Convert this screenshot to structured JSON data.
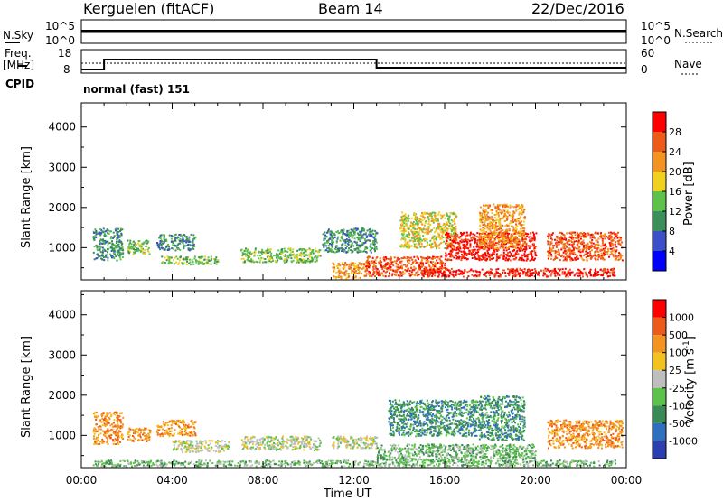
{
  "header": {
    "radar": "Kerguelen (fitACF)",
    "beam": "Beam 14",
    "date": "22/Dec/2016"
  },
  "top_panels": {
    "nsky_label": "N.Sky",
    "nsky_ticks": [
      "10^5",
      "10^0"
    ],
    "nsearch_label": "N.Search",
    "nsearch_ticks": [
      "10^5",
      "10^0"
    ],
    "freq_label": "Freq.",
    "freq_unit": "[MHz]",
    "freq_ticks": [
      "18",
      "8"
    ],
    "nave_label": "Nave",
    "nave_ticks": [
      "60",
      "0"
    ],
    "cpid_label": "CPID",
    "cpid_value": "normal (fast) 151"
  },
  "chart_data": [
    {
      "type": "heatmap",
      "name": "power",
      "ylabel": "Slant Range [km]",
      "yticks": [
        "4000",
        "3000",
        "2000",
        "1000"
      ],
      "ylim": [
        200,
        4600
      ],
      "colorbar_label": "Power [dB]",
      "colorbar_ticks": [
        "28",
        "24",
        "20",
        "16",
        "12",
        "8",
        "4"
      ],
      "colors": [
        "#0000ff",
        "#3a4fc8",
        "#3b8f5a",
        "#5cc24a",
        "#f2d01f",
        "#f39422",
        "#ee5a1a",
        "#ff0000"
      ],
      "clusters": [
        {
          "t": [
            0.5,
            1.8
          ],
          "r": [
            700,
            1500
          ],
          "level": 2
        },
        {
          "t": [
            2.0,
            3.0
          ],
          "r": [
            850,
            1200
          ],
          "level": 3
        },
        {
          "t": [
            3.3,
            5.0
          ],
          "r": [
            950,
            1350
          ],
          "level": 2
        },
        {
          "t": [
            3.5,
            6.0
          ],
          "r": [
            600,
            800
          ],
          "level": 3
        },
        {
          "t": [
            7.0,
            10.5
          ],
          "r": [
            650,
            1000
          ],
          "level": 3
        },
        {
          "t": [
            10.6,
            13.0
          ],
          "r": [
            900,
            1500
          ],
          "level": 2
        },
        {
          "t": [
            11.0,
            12.5
          ],
          "r": [
            250,
            650
          ],
          "level": 5
        },
        {
          "t": [
            12.5,
            16.0
          ],
          "r": [
            300,
            800
          ],
          "level": 6
        },
        {
          "t": [
            14.0,
            16.5
          ],
          "r": [
            1000,
            1900
          ],
          "level": 4
        },
        {
          "t": [
            16.0,
            20.0
          ],
          "r": [
            700,
            1400
          ],
          "level": 7
        },
        {
          "t": [
            17.5,
            19.5
          ],
          "r": [
            1000,
            2100
          ],
          "level": 5
        },
        {
          "t": [
            20.5,
            23.8
          ],
          "r": [
            700,
            1400
          ],
          "level": 6
        },
        {
          "t": [
            15.0,
            23.5
          ],
          "r": [
            300,
            500
          ],
          "level": 7
        }
      ]
    },
    {
      "type": "heatmap",
      "name": "velocity",
      "ylabel": "Slant Range [km]",
      "yticks": [
        "4000",
        "3000",
        "2000",
        "1000"
      ],
      "ylim": [
        200,
        4600
      ],
      "xlabel": "Time UT",
      "xticks": [
        "00:00",
        "04:00",
        "08:00",
        "12:00",
        "16:00",
        "20:00",
        "00:00"
      ],
      "xlim": [
        0,
        24
      ],
      "colorbar_label": "Velocity [m s^-1]",
      "colorbar_ticks": [
        "1000",
        "500",
        "100",
        "25",
        "-25",
        "-100",
        "-500",
        "-1000"
      ],
      "colors": [
        "#2b3fb0",
        "#2f6fc0",
        "#3a8a55",
        "#5cc24a",
        "#bebebe",
        "#f2c21f",
        "#f39422",
        "#ee5a1a",
        "#ff0000"
      ],
      "clusters": [
        {
          "t": [
            0.5,
            1.8
          ],
          "r": [
            800,
            1600
          ],
          "level": 6
        },
        {
          "t": [
            2.0,
            3.0
          ],
          "r": [
            850,
            1200
          ],
          "level": 6
        },
        {
          "t": [
            3.3,
            5.0
          ],
          "r": [
            1000,
            1400
          ],
          "level": 6
        },
        {
          "t": [
            4.0,
            6.5
          ],
          "r": [
            600,
            900
          ],
          "level": 4
        },
        {
          "t": [
            7.0,
            10.5
          ],
          "r": [
            650,
            1000
          ],
          "level": 4
        },
        {
          "t": [
            11.0,
            13.0
          ],
          "r": [
            700,
            1000
          ],
          "level": 4
        },
        {
          "t": [
            13.5,
            17.5
          ],
          "r": [
            1000,
            1900
          ],
          "level": 2
        },
        {
          "t": [
            17.5,
            19.5
          ],
          "r": [
            900,
            2000
          ],
          "level": 2
        },
        {
          "t": [
            13.0,
            20.0
          ],
          "r": [
            400,
            800
          ],
          "level": 3
        },
        {
          "t": [
            20.5,
            23.8
          ],
          "r": [
            700,
            1400
          ],
          "level": 6
        },
        {
          "t": [
            0.5,
            23.5
          ],
          "r": [
            250,
            400
          ],
          "level": 3
        }
      ]
    }
  ]
}
